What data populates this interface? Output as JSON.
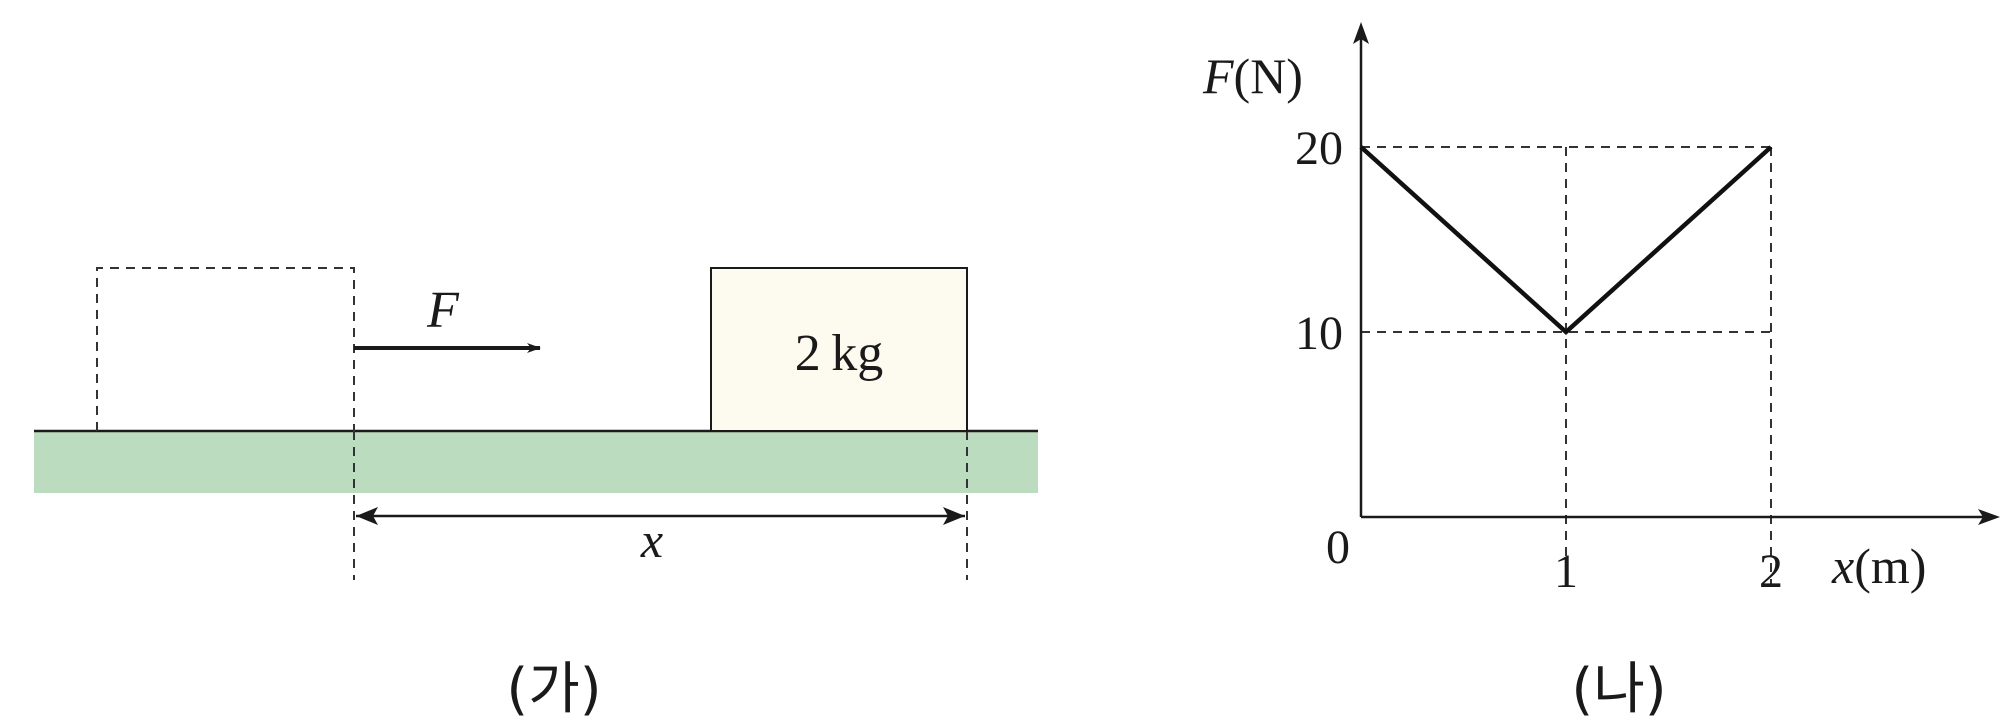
{
  "panel_a": {
    "force_label": "F",
    "block_label": "2 kg",
    "displacement_label": "x",
    "caption": "(가)",
    "colors": {
      "ground": "#bcdcc0",
      "block_fill": "#fdfbef"
    }
  },
  "panel_b": {
    "caption": "(나)",
    "origin_label": "0",
    "y_axis": {
      "symbol": "F",
      "unit": "(N)"
    },
    "x_axis": {
      "symbol": "x",
      "unit": "(m)"
    },
    "y_ticks": [
      "20",
      "10"
    ],
    "x_ticks": [
      "1",
      "2"
    ]
  },
  "chart_data": {
    "type": "line",
    "x": [
      0,
      1,
      2
    ],
    "y": [
      20,
      10,
      20
    ],
    "xlim": [
      0,
      2
    ],
    "ylim": [
      0,
      20
    ],
    "x_ticks": [
      1,
      2
    ],
    "y_ticks": [
      10,
      20
    ],
    "xlabel": "x(m)",
    "ylabel": "F(N)",
    "grid": "dashed guides at ticks"
  }
}
